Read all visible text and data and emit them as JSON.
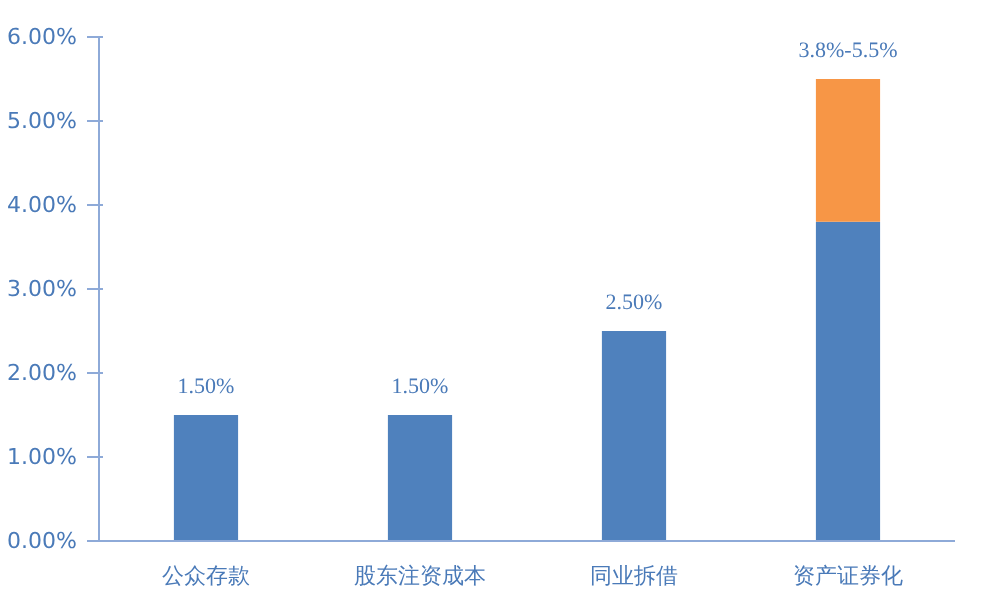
{
  "chart_data": {
    "type": "bar",
    "stacked": true,
    "categories": [
      "公众存款",
      "股东注资成本",
      "同业拆借",
      "资产证券化"
    ],
    "series": [
      {
        "color": "#4f81bd",
        "values": [
          1.5,
          1.5,
          2.5,
          3.8
        ]
      },
      {
        "color": "#f79646",
        "values": [
          null,
          null,
          null,
          1.7
        ]
      }
    ],
    "totals": [
      "1.50%",
      "1.50%",
      "2.50%",
      "3.8%-5.5%"
    ],
    "ylim": [
      0,
      6
    ],
    "yticks": [
      {
        "value": 0,
        "label": "0.00%"
      },
      {
        "value": 1,
        "label": "1.00%"
      },
      {
        "value": 2,
        "label": "2.00%"
      },
      {
        "value": 3,
        "label": "3.00%"
      },
      {
        "value": 4,
        "label": "4.00%"
      },
      {
        "value": 5,
        "label": "5.00%"
      },
      {
        "value": 6,
        "label": "6.00%"
      }
    ],
    "grid": false
  }
}
